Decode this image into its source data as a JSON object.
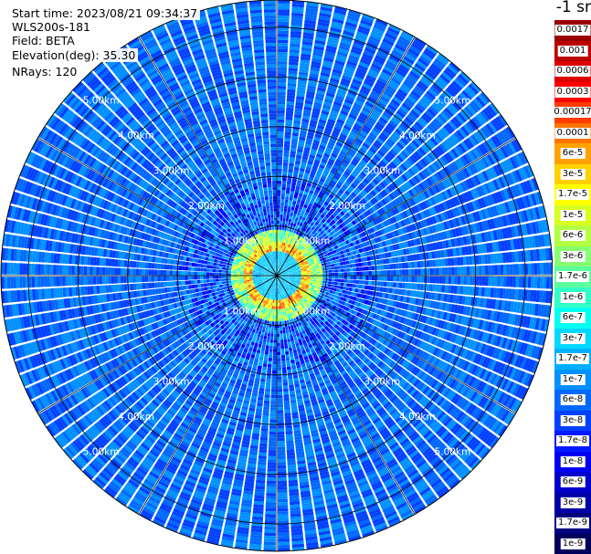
{
  "header": {
    "start_time": "Start time: 2023/08/21 09:34:37",
    "device": "WLS200s-181",
    "field": "Field: BETA",
    "elevation": "Elevation(deg): 35.30",
    "nrays": "NRays: 120",
    "units": "-1 sr"
  },
  "chart_data": {
    "type": "heatmap",
    "projection": "polar",
    "n_rays": 120,
    "range_unit": "km",
    "rings_km": [
      1,
      2,
      3,
      4,
      5
    ],
    "ring_labels": [
      "1.00km",
      "2.00km",
      "3.00km",
      "4.00km",
      "5.00km"
    ],
    "max_range_km": 5.55,
    "spokes_deg": [
      0,
      30,
      60,
      90,
      120,
      150,
      180,
      210,
      240,
      270,
      300,
      330
    ],
    "colorbar": [
      {
        "label": "0.0017",
        "color": "#9a0000"
      },
      {
        "label": "0.001",
        "color": "#bb0000"
      },
      {
        "label": "0.0006",
        "color": "#dc0000"
      },
      {
        "label": "0.0003",
        "color": "#ff0000"
      },
      {
        "label": "0.00017",
        "color": "#ff3c00"
      },
      {
        "label": "0.0001",
        "color": "#ff7400"
      },
      {
        "label": "6e-5",
        "color": "#ffa200"
      },
      {
        "label": "3e-5",
        "color": "#ffd000"
      },
      {
        "label": "1.7e-5",
        "color": "#ffff00"
      },
      {
        "label": "1e-5",
        "color": "#d8ff1f"
      },
      {
        "label": "6e-6",
        "color": "#b3ff42"
      },
      {
        "label": "3e-6",
        "color": "#86ff70"
      },
      {
        "label": "1.7e-6",
        "color": "#5bff9c"
      },
      {
        "label": "1e-6",
        "color": "#32ffc6"
      },
      {
        "label": "6e-7",
        "color": "#00fff0"
      },
      {
        "label": "3e-7",
        "color": "#00d8ff"
      },
      {
        "label": "1.7e-7",
        "color": "#00b0ff"
      },
      {
        "label": "1e-7",
        "color": "#0090ff"
      },
      {
        "label": "6e-8",
        "color": "#0068ff"
      },
      {
        "label": "3e-8",
        "color": "#0040ff"
      },
      {
        "label": "1.7e-8",
        "color": "#0018ff"
      },
      {
        "label": "1e-8",
        "color": "#0000f2"
      },
      {
        "label": "6e-9",
        "color": "#0000cc"
      },
      {
        "label": "3e-9",
        "color": "#0000a6"
      },
      {
        "label": "1.7e-9",
        "color": "#000080"
      },
      {
        "label": "1e-9",
        "color": "#00005c"
      }
    ]
  }
}
